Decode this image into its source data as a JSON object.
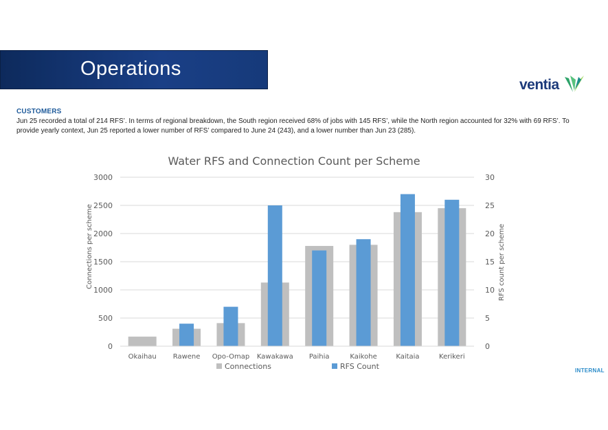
{
  "banner": {
    "title": "Operations"
  },
  "logo": {
    "text": "ventia"
  },
  "section": {
    "label": "CUSTOMERS",
    "text": "Jun 25 recorded a total of 214 RFS’. In terms of regional breakdown, the South region received 68% of jobs with 145 RFS’, while the North region accounted for 32% with 69 RFS’. To provide yearly context, Jun 25 reported a lower number of RFS’ compared to June 24 (243), and a lower number than Jun 23 (285)."
  },
  "footer": {
    "classification": "INTERNAL"
  },
  "colors": {
    "connections": "#bfbfbf",
    "rfs": "#5b9bd5",
    "banner": "#1a3f86",
    "logo_green": "#3cb878"
  },
  "chart_data": {
    "type": "bar",
    "title": "Water RFS and Connection Count per Scheme",
    "categories": [
      "Okaihau",
      "Rawene",
      "Opo-Omap",
      "Kawakawa",
      "Paihia",
      "Kaikohe",
      "Kaitaia",
      "Kerikeri"
    ],
    "series": [
      {
        "name": "Connections",
        "axis": "left",
        "values": [
          170,
          310,
          410,
          1130,
          1780,
          1800,
          2380,
          2450
        ]
      },
      {
        "name": "RFS Count",
        "axis": "right",
        "values": [
          0,
          4,
          7,
          25,
          17,
          19,
          27,
          26
        ]
      }
    ],
    "ylabel": "Connections per scheme",
    "y2label": "RFS count per scheme",
    "ylim": [
      0,
      3000
    ],
    "y2lim": [
      0,
      30
    ],
    "yticks": [
      "0",
      "500",
      "1000",
      "1500",
      "2000",
      "2500",
      "3000"
    ],
    "y2ticks": [
      "0",
      "5",
      "10",
      "15",
      "20",
      "25",
      "30"
    ],
    "grid": true,
    "legend": "bottom"
  }
}
